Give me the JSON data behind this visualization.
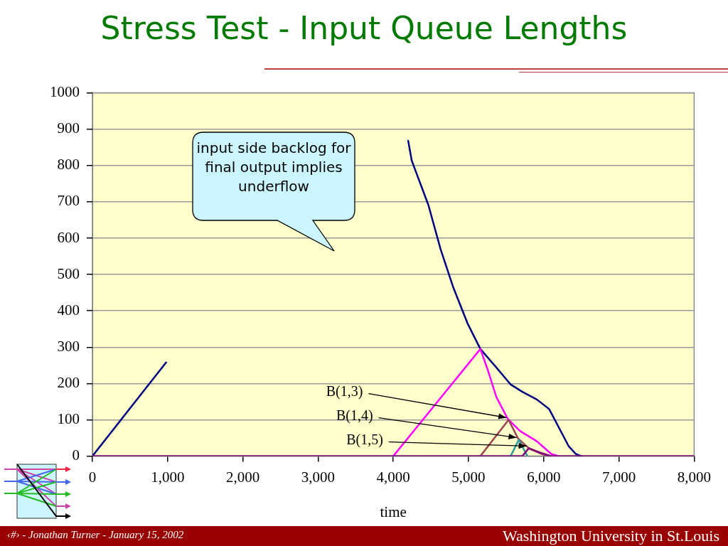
{
  "chart_data": {
    "type": "line",
    "title": "Stress Test - Input Queue Lengths",
    "xlabel": "time",
    "series": [
      {
        "color": "#000080",
        "x": [
          0,
          980,
          2500,
          4198,
          4246,
          4467,
          4630,
          4793,
          4986,
          5158,
          5370,
          5562,
          5716,
          5908,
          6071,
          6196,
          6330,
          6426,
          6500
        ],
        "values": [
          0,
          258,
          null,
          868,
          813,
          691,
          569,
          467,
          366,
          295,
          244,
          197,
          177,
          156,
          130,
          81,
          28,
          6,
          0
        ]
      },
      {
        "color": "#ff00ff",
        "x": [
          4000,
          5158,
          5255,
          5370,
          5524,
          5687,
          5908,
          6100,
          6200
        ],
        "values": [
          0,
          295,
          238,
          163,
          102,
          69,
          41,
          6,
          0
        ]
      },
      {
        "color": "#994455",
        "x": [
          5158,
          5533,
          5658,
          5812,
          5975,
          6050
        ],
        "values": [
          0,
          100,
          49,
          20,
          6,
          0
        ]
      },
      {
        "color": "#2f9c9c",
        "x": [
          5560,
          5668,
          5783
        ],
        "values": [
          0,
          45,
          0
        ]
      },
      {
        "color": "#800080",
        "x": [
          0,
          5716,
          5802,
          5946,
          6100,
          8000
        ],
        "values": [
          0,
          0,
          22,
          10,
          0,
          0
        ]
      }
    ],
    "xlim": [
      0,
      8000
    ],
    "ylim": [
      0,
      1000
    ],
    "xticks": [
      0,
      {
        "value": 1000,
        "label": "1,000"
      },
      {
        "value": 2000,
        "label": "2,000"
      },
      {
        "value": 3000,
        "label": "3,000"
      },
      {
        "value": 4000,
        "label": "4,000"
      },
      {
        "value": 5000,
        "label": "5,000"
      },
      {
        "value": 6000,
        "label": "6,000"
      },
      {
        "value": 7000,
        "label": "7,000"
      },
      {
        "value": 8000,
        "label": "8,000"
      }
    ],
    "yticks": [
      0,
      100,
      200,
      300,
      400,
      500,
      600,
      700,
      800,
      900,
      1000
    ],
    "grid": "y",
    "legend": false,
    "marker": "none",
    "line_style": "solid",
    "annotations": [
      {
        "text": "B(1,3)",
        "x": 5533,
        "y": 100
      },
      {
        "text": "B(1,4)",
        "x": 5668,
        "y": 45
      },
      {
        "text": "B(1,5)",
        "x": 5802,
        "y": 22
      },
      "input side backlog for final output implies underflow",
      "‹#› - Jonathan Turner - January 15, 2002",
      "Washington University in St.Louis"
    ]
  }
}
